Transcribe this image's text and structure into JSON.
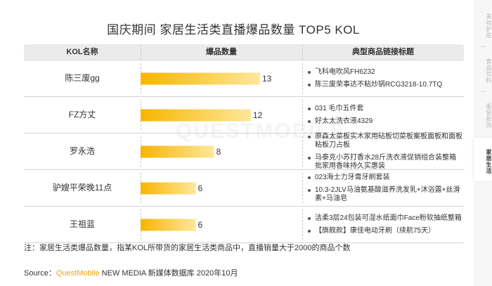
{
  "title": "国庆期间 家居生活类直播爆品数量 TOP5 KOL",
  "table": {
    "headers": [
      "KOL名称",
      "爆品数量",
      "典型商品链接标题"
    ],
    "rows": [
      {
        "name": "陈三废gg",
        "count": "13",
        "products": [
          "飞科电吹风FH6232",
          "陈三废荣事达不粘炒锅RCG3218-10.7TQ"
        ]
      },
      {
        "name": "FZ方丈",
        "count": "12",
        "products": [
          "031 毛巾五件套",
          "好太太洗衣液4329"
        ]
      },
      {
        "name": "罗永浩",
        "count": "8",
        "products": [
          "原森太菜板实木家用砧板切菜板案板面板和面板粘板刀占板",
          "马泰克小苏打香水28斤洗衣液促销组合装整箱批家用香味持久实惠装"
        ]
      },
      {
        "name": "驴嫂平荣晚11点",
        "count": "6",
        "products": [
          "023海士力牙膏牙刷套装",
          "10.3-2JLV马油氨基酸滋养洗发乳+沐浴露+丝滑素+马油皂"
        ]
      },
      {
        "name": "王祖蓝",
        "count": "6",
        "products": [
          "洁柔3层24包装可湿水纸面巾Face粉软抽纸整箱",
          "【旗舰款】康佳电动牙刷（续航75天）"
        ]
      }
    ]
  },
  "chart_data": {
    "type": "bar",
    "orientation": "horizontal",
    "categories": [
      "陈三废gg",
      "FZ方丈",
      "罗永浩",
      "驴嫂平荣晚11点",
      "王祖蓝"
    ],
    "values": [
      13,
      12,
      8,
      6,
      6
    ],
    "title": "国庆期间 家居生活类直播爆品数量 TOP5 KOL",
    "xlabel": "",
    "ylabel": "",
    "xlim": [
      0,
      14
    ],
    "colors": {
      "bar_start": "#f7b500",
      "bar_end": "#ffe79a"
    }
  },
  "note": "注：家居生活类爆品数量，指某KOL所带货的家居生活类商品中，直播销量大于2000的商品个数",
  "source": {
    "prefix": "Source：",
    "brand": "QuestMobile",
    "suffix": " NEW MEDIA 新媒体数据库 2020年10月"
  },
  "watermark": "QUESTMOBILE",
  "sidebar": {
    "items": [
      {
        "label": "美妆护肤",
        "active": false
      },
      {
        "label": "食品饮料",
        "active": false
      },
      {
        "label": "服装配饰",
        "active": false
      },
      {
        "label": "家居生活",
        "active": true
      }
    ]
  }
}
